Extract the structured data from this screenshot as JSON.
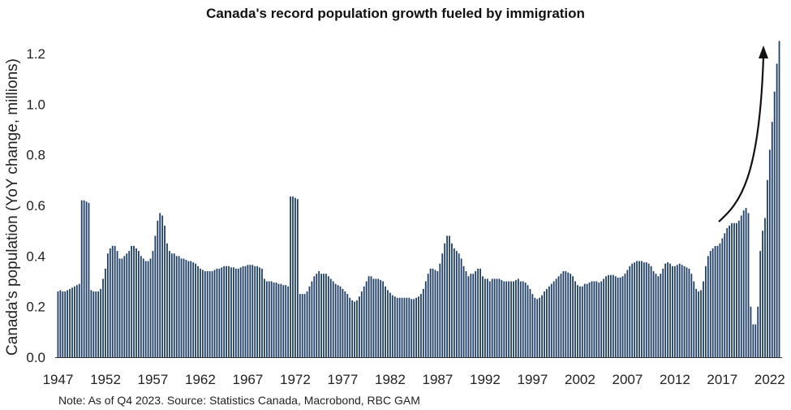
{
  "chart_data": {
    "type": "bar",
    "title": "Canada's record population growth fueled by immigration",
    "xlabel": "",
    "ylabel": "Canada's population (YoY change, millions)",
    "note": "Note: As of Q4 2023. Source: Statistics Canada, Macrobond, RBC GAM",
    "ylim": [
      0,
      1.25
    ],
    "y_ticks": [
      "0.0",
      "0.2",
      "0.4",
      "0.6",
      "0.8",
      "1.0",
      "1.2"
    ],
    "x_ticks": [
      "1947",
      "1952",
      "1957",
      "1962",
      "1967",
      "1972",
      "1977",
      "1982",
      "1987",
      "1992",
      "1997",
      "2002",
      "2007",
      "2012",
      "2017",
      "2022"
    ],
    "frequency": "quarterly",
    "start": "1947",
    "end": "2023 Q4",
    "grid": false,
    "legend": "none",
    "colors": {
      "bar": "#1f3f66",
      "arrow": "#111111",
      "axis": "#333333"
    },
    "annotation": "upward-arrow",
    "values": [
      0.26,
      0.265,
      0.26,
      0.26,
      0.265,
      0.27,
      0.275,
      0.28,
      0.285,
      0.29,
      0.62,
      0.62,
      0.615,
      0.61,
      0.265,
      0.26,
      0.26,
      0.26,
      0.27,
      0.31,
      0.35,
      0.41,
      0.43,
      0.44,
      0.44,
      0.42,
      0.39,
      0.39,
      0.4,
      0.41,
      0.42,
      0.44,
      0.44,
      0.43,
      0.42,
      0.4,
      0.39,
      0.38,
      0.38,
      0.39,
      0.42,
      0.48,
      0.54,
      0.57,
      0.56,
      0.52,
      0.45,
      0.42,
      0.41,
      0.41,
      0.4,
      0.4,
      0.39,
      0.39,
      0.385,
      0.38,
      0.38,
      0.375,
      0.37,
      0.36,
      0.35,
      0.345,
      0.34,
      0.34,
      0.34,
      0.34,
      0.345,
      0.35,
      0.35,
      0.355,
      0.36,
      0.36,
      0.36,
      0.355,
      0.355,
      0.35,
      0.35,
      0.355,
      0.36,
      0.36,
      0.365,
      0.365,
      0.365,
      0.36,
      0.36,
      0.355,
      0.35,
      0.31,
      0.3,
      0.3,
      0.3,
      0.295,
      0.295,
      0.29,
      0.29,
      0.285,
      0.285,
      0.28,
      0.635,
      0.635,
      0.63,
      0.625,
      0.25,
      0.25,
      0.25,
      0.26,
      0.28,
      0.3,
      0.32,
      0.33,
      0.34,
      0.33,
      0.33,
      0.33,
      0.32,
      0.31,
      0.3,
      0.29,
      0.285,
      0.28,
      0.27,
      0.26,
      0.25,
      0.235,
      0.225,
      0.22,
      0.225,
      0.24,
      0.26,
      0.28,
      0.3,
      0.32,
      0.32,
      0.31,
      0.31,
      0.31,
      0.305,
      0.3,
      0.28,
      0.265,
      0.255,
      0.245,
      0.24,
      0.235,
      0.235,
      0.235,
      0.235,
      0.235,
      0.235,
      0.23,
      0.23,
      0.235,
      0.24,
      0.25,
      0.27,
      0.3,
      0.33,
      0.35,
      0.35,
      0.345,
      0.34,
      0.37,
      0.41,
      0.45,
      0.48,
      0.48,
      0.45,
      0.43,
      0.42,
      0.41,
      0.39,
      0.36,
      0.34,
      0.32,
      0.33,
      0.33,
      0.34,
      0.35,
      0.35,
      0.32,
      0.31,
      0.31,
      0.3,
      0.31,
      0.31,
      0.31,
      0.31,
      0.305,
      0.3,
      0.3,
      0.3,
      0.3,
      0.3,
      0.305,
      0.31,
      0.3,
      0.3,
      0.295,
      0.285,
      0.27,
      0.25,
      0.235,
      0.23,
      0.235,
      0.245,
      0.26,
      0.27,
      0.28,
      0.29,
      0.3,
      0.31,
      0.32,
      0.33,
      0.34,
      0.34,
      0.335,
      0.33,
      0.32,
      0.3,
      0.285,
      0.28,
      0.28,
      0.29,
      0.29,
      0.295,
      0.3,
      0.3,
      0.3,
      0.295,
      0.3,
      0.31,
      0.32,
      0.325,
      0.325,
      0.325,
      0.32,
      0.315,
      0.315,
      0.32,
      0.33,
      0.345,
      0.36,
      0.37,
      0.375,
      0.38,
      0.38,
      0.38,
      0.375,
      0.375,
      0.37,
      0.36,
      0.34,
      0.33,
      0.32,
      0.33,
      0.35,
      0.37,
      0.375,
      0.37,
      0.36,
      0.36,
      0.365,
      0.37,
      0.365,
      0.36,
      0.355,
      0.35,
      0.33,
      0.3,
      0.27,
      0.26,
      0.265,
      0.3,
      0.36,
      0.4,
      0.42,
      0.43,
      0.44,
      0.44,
      0.45,
      0.47,
      0.49,
      0.51,
      0.52,
      0.53,
      0.53,
      0.53,
      0.54,
      0.56,
      0.58,
      0.59,
      0.57,
      0.2,
      0.13,
      0.13,
      0.2,
      0.42,
      0.5,
      0.55,
      0.7,
      0.82,
      0.93,
      1.05,
      1.16,
      1.25
    ]
  }
}
